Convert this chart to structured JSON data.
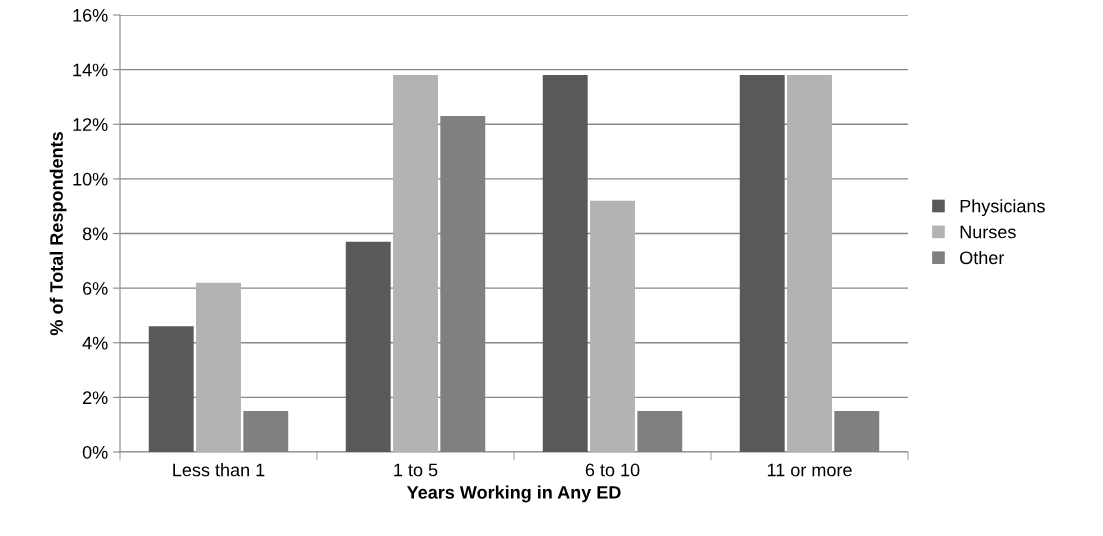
{
  "chart_data": {
    "type": "bar",
    "xlabel": "Years Working in Any ED",
    "ylabel": "% of Total Respondents",
    "categories": [
      "Less than 1",
      "1 to 5",
      "6 to 10",
      "11 or more"
    ],
    "series": [
      {
        "name": "Physicians",
        "color": "#595959",
        "values": [
          4.6,
          7.7,
          13.8,
          13.8
        ]
      },
      {
        "name": "Nurses",
        "color": "#b3b3b3",
        "values": [
          6.2,
          13.8,
          9.2,
          13.8
        ]
      },
      {
        "name": "Other",
        "color": "#808080",
        "values": [
          1.5,
          12.3,
          1.5,
          1.5
        ]
      }
    ],
    "ylim": [
      0,
      16
    ],
    "yticks": [
      {
        "value": 0,
        "label": "0%"
      },
      {
        "value": 2,
        "label": "2%"
      },
      {
        "value": 4,
        "label": "4%"
      },
      {
        "value": 6,
        "label": "6%"
      },
      {
        "value": 8,
        "label": "8%"
      },
      {
        "value": 10,
        "label": "10%"
      },
      {
        "value": 12,
        "label": "12%"
      },
      {
        "value": 14,
        "label": "14%"
      },
      {
        "value": 16,
        "label": "16%"
      }
    ],
    "grid": "y",
    "legend": "right"
  }
}
